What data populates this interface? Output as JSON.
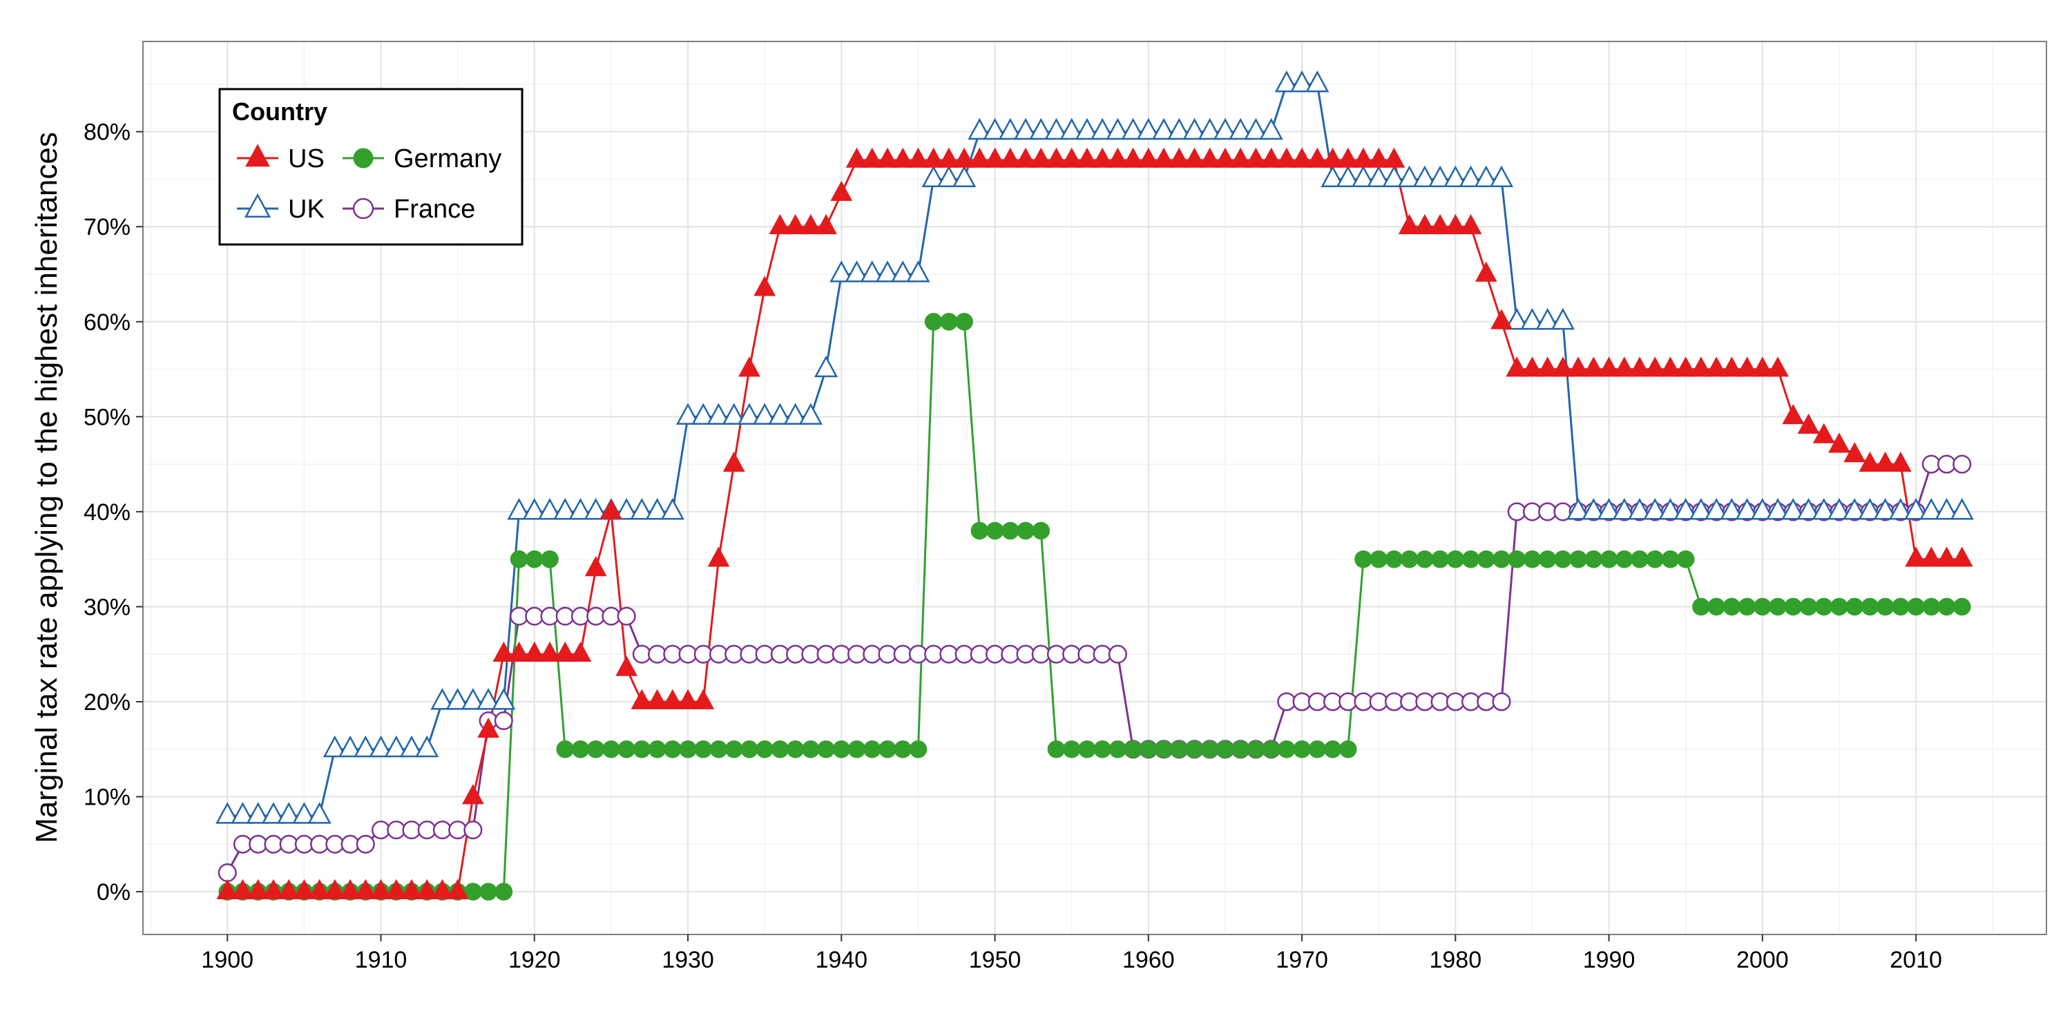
{
  "chart_data": {
    "type": "line",
    "title": "",
    "xlabel": "",
    "ylabel": "Marginal tax rate applying to the highest inheritances",
    "xlim": [
      1894.5,
      2018.5
    ],
    "ylim": [
      -4.5,
      89.5
    ],
    "x_ticks": [
      1900,
      1910,
      1920,
      1930,
      1940,
      1950,
      1960,
      1970,
      1980,
      1990,
      2000,
      2010
    ],
    "y_ticks": [
      0,
      10,
      20,
      30,
      40,
      50,
      60,
      70,
      80
    ],
    "y_tick_labels": [
      "0%",
      "10%",
      "20%",
      "30%",
      "40%",
      "50%",
      "60%",
      "70%",
      "80%"
    ],
    "grid": true,
    "legend": {
      "title": "Country",
      "position": "top-left",
      "entries": [
        "US",
        "Germany",
        "UK",
        "France"
      ]
    },
    "colors": {
      "US": "#e41a1c",
      "Germany": "#33a02c",
      "UK": "#2166ac",
      "France": "#7b3294"
    },
    "markers": {
      "US": "triangle-filled",
      "Germany": "circle-filled",
      "UK": "triangle-open",
      "France": "circle-open"
    },
    "series": [
      {
        "name": "US",
        "segments": [
          {
            "x0": 1900,
            "x1": 1915,
            "y": 0
          },
          {
            "x0": 1916,
            "x1": 1916,
            "y": 10
          },
          {
            "x0": 1917,
            "x1": 1917,
            "y": 17
          },
          {
            "x0": 1918,
            "x1": 1923,
            "y": 25
          },
          {
            "x0": 1924,
            "x1": 1924,
            "y": 34
          },
          {
            "x0": 1925,
            "x1": 1925,
            "y": 40
          },
          {
            "x0": 1926,
            "x1": 1926,
            "y": 23.5
          },
          {
            "x0": 1927,
            "x1": 1931,
            "y": 20
          },
          {
            "x0": 1932,
            "x1": 1932,
            "y": 35
          },
          {
            "x0": 1933,
            "x1": 1933,
            "y": 45
          },
          {
            "x0": 1934,
            "x1": 1934,
            "y": 55
          },
          {
            "x0": 1935,
            "x1": 1935,
            "y": 63.5
          },
          {
            "x0": 1936,
            "x1": 1939,
            "y": 70
          },
          {
            "x0": 1940,
            "x1": 1940,
            "y": 73.5
          },
          {
            "x0": 1941,
            "x1": 1976,
            "y": 77
          },
          {
            "x0": 1977,
            "x1": 1981,
            "y": 70
          },
          {
            "x0": 1982,
            "x1": 1982,
            "y": 65
          },
          {
            "x0": 1983,
            "x1": 1983,
            "y": 60
          },
          {
            "x0": 1984,
            "x1": 2001,
            "y": 55
          },
          {
            "x0": 2002,
            "x1": 2002,
            "y": 50
          },
          {
            "x0": 2003,
            "x1": 2003,
            "y": 49
          },
          {
            "x0": 2004,
            "x1": 2004,
            "y": 48
          },
          {
            "x0": 2005,
            "x1": 2005,
            "y": 47
          },
          {
            "x0": 2006,
            "x1": 2006,
            "y": 46
          },
          {
            "x0": 2007,
            "x1": 2009,
            "y": 45
          },
          {
            "x0": 2010,
            "x1": 2013,
            "y": 35
          }
        ]
      },
      {
        "name": "Germany",
        "segments": [
          {
            "x0": 1900,
            "x1": 1918,
            "y": 0
          },
          {
            "x0": 1919,
            "x1": 1921,
            "y": 35
          },
          {
            "x0": 1922,
            "x1": 1945,
            "y": 15
          },
          {
            "x0": 1946,
            "x1": 1948,
            "y": 60
          },
          {
            "x0": 1949,
            "x1": 1953,
            "y": 38
          },
          {
            "x0": 1954,
            "x1": 1973,
            "y": 15
          },
          {
            "x0": 1974,
            "x1": 1995,
            "y": 35
          },
          {
            "x0": 1996,
            "x1": 2013,
            "y": 30
          }
        ]
      },
      {
        "name": "UK",
        "segments": [
          {
            "x0": 1900,
            "x1": 1906,
            "y": 8
          },
          {
            "x0": 1907,
            "x1": 1913,
            "y": 15
          },
          {
            "x0": 1914,
            "x1": 1918,
            "y": 20
          },
          {
            "x0": 1919,
            "x1": 1929,
            "y": 40
          },
          {
            "x0": 1930,
            "x1": 1938,
            "y": 50
          },
          {
            "x0": 1939,
            "x1": 1939,
            "y": 55
          },
          {
            "x0": 1940,
            "x1": 1945,
            "y": 65
          },
          {
            "x0": 1946,
            "x1": 1948,
            "y": 75
          },
          {
            "x0": 1949,
            "x1": 1968,
            "y": 80
          },
          {
            "x0": 1969,
            "x1": 1971,
            "y": 85
          },
          {
            "x0": 1972,
            "x1": 1983,
            "y": 75
          },
          {
            "x0": 1984,
            "x1": 1987,
            "y": 60
          },
          {
            "x0": 1988,
            "x1": 2013,
            "y": 40
          }
        ]
      },
      {
        "name": "France",
        "segments": [
          {
            "x0": 1900,
            "x1": 1900,
            "y": 2
          },
          {
            "x0": 1901,
            "x1": 1909,
            "y": 5
          },
          {
            "x0": 1910,
            "x1": 1916,
            "y": 6.5
          },
          {
            "x0": 1917,
            "x1": 1918,
            "y": 18
          },
          {
            "x0": 1919,
            "x1": 1926,
            "y": 29
          },
          {
            "x0": 1927,
            "x1": 1958,
            "y": 25
          },
          {
            "x0": 1959,
            "x1": 1968,
            "y": 15
          },
          {
            "x0": 1969,
            "x1": 1983,
            "y": 20
          },
          {
            "x0": 1984,
            "x1": 2010,
            "y": 40
          },
          {
            "x0": 2011,
            "x1": 2013,
            "y": 45
          }
        ]
      }
    ]
  }
}
